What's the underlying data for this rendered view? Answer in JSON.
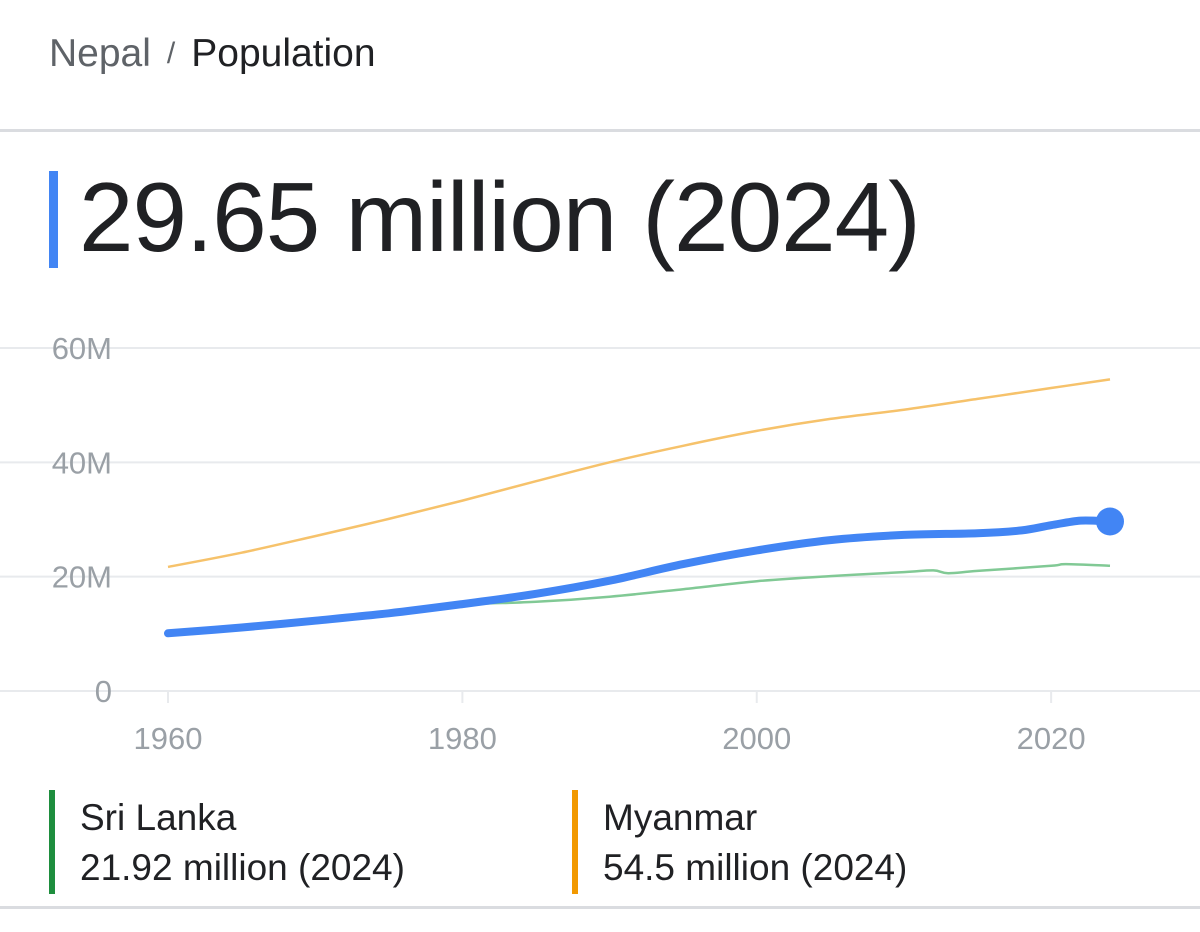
{
  "breadcrumb": {
    "parent": "Nepal",
    "separator": "/",
    "current": "Population"
  },
  "headline": {
    "value": "29.65 million (2024)",
    "accent_color": "#4285f4"
  },
  "chart_data": {
    "type": "line",
    "title": "Population",
    "xlabel": "",
    "ylabel": "",
    "xlim": [
      1960,
      2024
    ],
    "ylim": [
      0,
      60
    ],
    "x_ticks": [
      1960,
      1980,
      2000,
      2020
    ],
    "x_tick_labels": [
      "1960",
      "1980",
      "2000",
      "2020"
    ],
    "y_ticks": [
      0,
      20,
      40,
      60
    ],
    "y_tick_labels": [
      "0",
      "20M",
      "40M",
      "60M"
    ],
    "units": "million",
    "grid": true,
    "series": [
      {
        "name": "Myanmar",
        "color": "#f6c26b",
        "x": [
          1960,
          1965,
          1970,
          1975,
          1980,
          1985,
          1990,
          1995,
          2000,
          2005,
          2010,
          2015,
          2020,
          2024
        ],
        "values": [
          21.7,
          24.2,
          27.1,
          30.1,
          33.3,
          36.7,
          40.0,
          42.9,
          45.5,
          47.6,
          49.2,
          51.1,
          53.0,
          54.5
        ]
      },
      {
        "name": "Sri Lanka",
        "color": "#81c995",
        "x": [
          1960,
          1965,
          1970,
          1975,
          1980,
          1985,
          1990,
          1995,
          2000,
          2005,
          2010,
          2012,
          2013,
          2015,
          2020,
          2021,
          2024
        ],
        "values": [
          10.2,
          11.3,
          12.6,
          13.8,
          15.1,
          15.6,
          16.5,
          17.8,
          19.2,
          20.1,
          20.8,
          21.1,
          20.6,
          21.0,
          21.9,
          22.2,
          21.9
        ]
      },
      {
        "name": "Nepal",
        "color": "#4285f4",
        "x": [
          1960,
          1965,
          1970,
          1975,
          1980,
          1985,
          1990,
          1995,
          2000,
          2005,
          2010,
          2015,
          2018,
          2020,
          2022,
          2024
        ],
        "values": [
          10.1,
          11.1,
          12.3,
          13.6,
          15.2,
          17.0,
          19.3,
          22.2,
          24.6,
          26.4,
          27.3,
          27.6,
          28.1,
          29.0,
          29.8,
          29.65
        ]
      }
    ],
    "highlight": {
      "series": "Nepal",
      "x": 2024,
      "value": 29.65
    }
  },
  "legend": [
    {
      "name": "Sri Lanka",
      "value": "21.92 million (2024)",
      "color": "#1e8e3e"
    },
    {
      "name": "Myanmar",
      "value": "54.5 million (2024)",
      "color": "#f29900"
    }
  ]
}
